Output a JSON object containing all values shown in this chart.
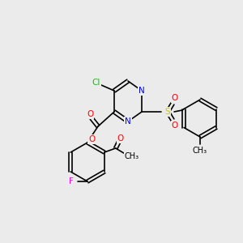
{
  "bg_color": "#ebebeb",
  "bond_color": "#000000",
  "atom_colors": {
    "Cl": "#00cc00",
    "N": "#0000ff",
    "O": "#ff0000",
    "F": "#ff00ff",
    "S": "#cccc00",
    "C": "#000000"
  },
  "font_size": 7.5,
  "line_width": 1.2
}
